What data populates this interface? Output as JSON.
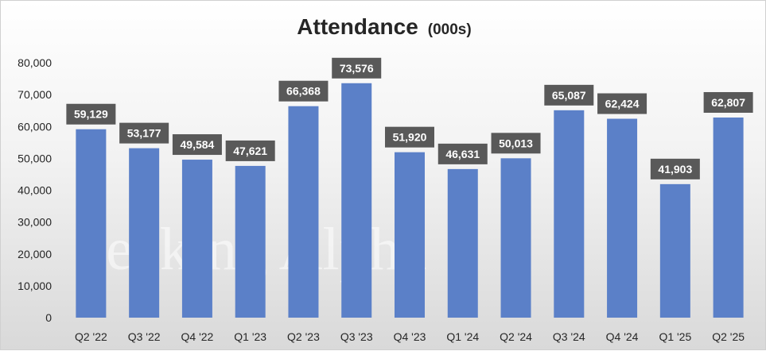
{
  "chart_data": {
    "type": "bar",
    "title": "Attendance",
    "subtitle": "(000s)",
    "xlabel": "",
    "ylabel": "",
    "categories": [
      "Q2 '22",
      "Q3 '22",
      "Q4 '22",
      "Q1 '23",
      "Q2 '23",
      "Q3 '23",
      "Q4 '23",
      "Q1 '24",
      "Q2 '24",
      "Q3 '24",
      "Q4 '24",
      "Q1 '25",
      "Q2 '25"
    ],
    "values": [
      59129,
      53177,
      49584,
      47621,
      66368,
      73576,
      51920,
      46631,
      50013,
      65087,
      62424,
      41903,
      62807
    ],
    "data_labels": [
      "59,129",
      "53,177",
      "49,584",
      "47,621",
      "66,368",
      "73,576",
      "51,920",
      "46,631",
      "50,013",
      "65,087",
      "62,424",
      "41,903",
      "62,807"
    ],
    "ylim": [
      0,
      80000
    ],
    "y_ticks": [
      "0",
      "10,000",
      "20,000",
      "30,000",
      "40,000",
      "50,000",
      "60,000",
      "70,000",
      "80,000"
    ],
    "grid": false,
    "legend": "none",
    "colors": {
      "bar": "#5b80c8",
      "label_box": "#595959",
      "label_text": "#ffffff"
    },
    "watermark": "Seeking Alpha"
  }
}
